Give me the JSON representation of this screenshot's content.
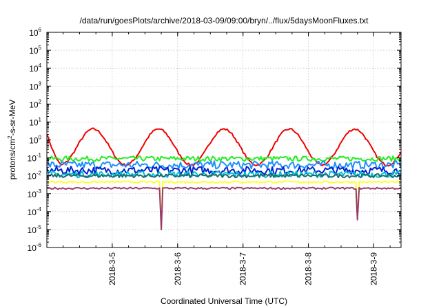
{
  "chart_data": {
    "type": "line",
    "title": "/data/run/goesPlots/archive/2018-03-09/09:00/bryn/../flux/5daysMoonFluxes.txt",
    "xlabel": "Coordinated Universal Time (UTC)",
    "ylabel_parts": [
      "protons/cm",
      "2",
      "-s-sr-MeV"
    ],
    "yscale": "log",
    "ylim": [
      1e-06,
      1000000.0
    ],
    "yticks": [
      {
        "base": "10",
        "exp": "-6"
      },
      {
        "base": "10",
        "exp": "-5"
      },
      {
        "base": "10",
        "exp": "-4"
      },
      {
        "base": "10",
        "exp": "-3"
      },
      {
        "base": "10",
        "exp": "-2"
      },
      {
        "base": "10",
        "exp": "-1"
      },
      {
        "base": "10",
        "exp": "0"
      },
      {
        "base": "10",
        "exp": "1"
      },
      {
        "base": "10",
        "exp": "2"
      },
      {
        "base": "10",
        "exp": "3"
      },
      {
        "base": "10",
        "exp": "4"
      },
      {
        "base": "10",
        "exp": "5"
      },
      {
        "base": "10",
        "exp": "6"
      }
    ],
    "xlim": [
      "2018-03-04 00:00",
      "2018-03-09 10:00"
    ],
    "xticks": [
      "2018-3-5",
      "2018-3-6",
      "2018-3-7",
      "2018-3-8",
      "2018-3-9"
    ],
    "grid": true,
    "legend": "none",
    "series": [
      {
        "color": "#ee0000",
        "base": 0.9,
        "var": 0.06,
        "profile": "diurnal",
        "dips": []
      },
      {
        "color": "#22ee22",
        "base": 0.09,
        "var": 0.14,
        "profile": "flat",
        "dips": []
      },
      {
        "color": "#1f8fff",
        "base": 0.04,
        "var": 0.22,
        "profile": "flat",
        "dips": []
      },
      {
        "color": "#0022cc",
        "base": 0.02,
        "var": 0.22,
        "profile": "flat",
        "dips": []
      },
      {
        "color": "#00c0d0",
        "base": 0.012,
        "var": 0.18,
        "profile": "flat",
        "dips": []
      },
      {
        "color": "#1b6b6b",
        "base": 0.01,
        "var": 0.1,
        "profile": "flat",
        "dips": []
      },
      {
        "color": "#ffff33",
        "base": 0.0045,
        "var": 0.05,
        "profile": "flat",
        "dips": [
          {
            "t": "2018-03-05 18:00",
            "v": 1e-05
          },
          {
            "t": "2018-03-08 18:00",
            "v": 4e-05
          }
        ]
      },
      {
        "color": "#9a3a6a",
        "base": 0.002,
        "var": 0.05,
        "profile": "flat",
        "dips": [
          {
            "t": "2018-03-05 18:00",
            "v": 1e-05
          },
          {
            "t": "2018-03-08 18:00",
            "v": 3.5e-05
          }
        ]
      }
    ]
  }
}
